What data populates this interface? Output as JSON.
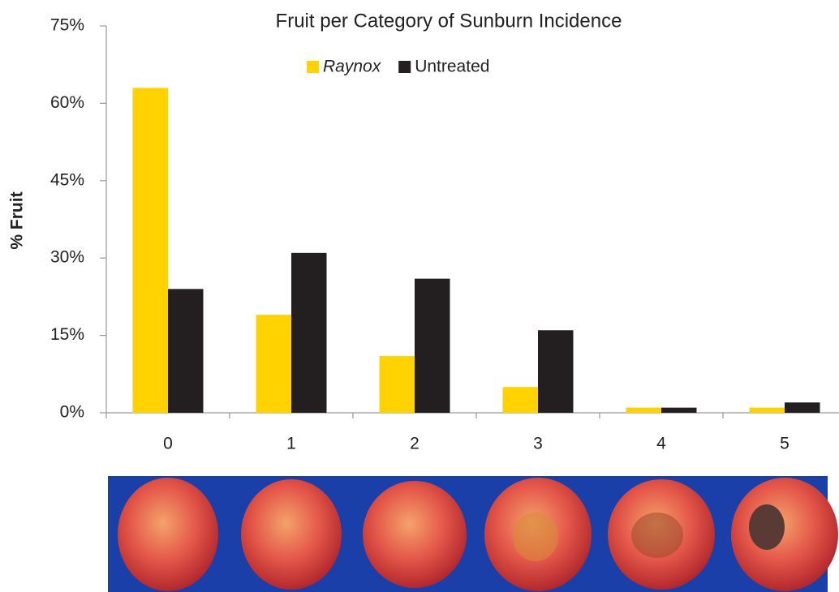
{
  "chart_data": {
    "type": "bar",
    "title": "Fruit per Category of Sunburn Incidence",
    "y_label": "% Fruit",
    "categories": [
      "0",
      "1",
      "2",
      "3",
      "4",
      "5"
    ],
    "series": [
      {
        "name": "Raynox",
        "color": "#ffd200",
        "values": [
          63,
          19,
          11,
          5,
          1,
          1
        ]
      },
      {
        "name": "Untreated",
        "color": "#231f20",
        "values": [
          24,
          31,
          26,
          16,
          1,
          2
        ]
      }
    ],
    "ylim": [
      0,
      75
    ],
    "yticks": [
      {
        "value": 0,
        "label": "0%"
      },
      {
        "value": 15,
        "label": "15%"
      },
      {
        "value": 30,
        "label": "30%"
      },
      {
        "value": 45,
        "label": "45%"
      },
      {
        "value": 60,
        "label": "60%"
      },
      {
        "value": 75,
        "label": "75%"
      }
    ],
    "grid": false,
    "legend": "top"
  }
}
